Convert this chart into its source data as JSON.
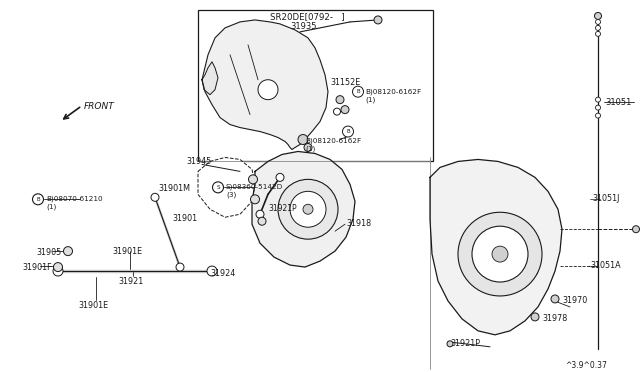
{
  "bg_color": "#ffffff",
  "line_color": "#1a1a1a",
  "text_color": "#1a1a1a",
  "gray_fill": "#e8e8e8",
  "light_gray": "#d0d0d0",
  "parts": {
    "SR20DE": "SR20DE[0792-   ]",
    "31935": "31935",
    "31152E": "31152E",
    "B08120_1": "B)08120-6162F",
    "sub1": "(1)",
    "B08120_2": "B)08120-6162F",
    "sub2": "(1)",
    "31051": "31051",
    "31051J": "31051J",
    "31051A": "31051A",
    "31970": "31970",
    "31978": "31978",
    "31921P_r": "31921P",
    "31945": "31945",
    "B08070": "B)08070-61210",
    "sub3": "(1)",
    "S08360": "S)08360-5142D",
    "sub4": "(3)",
    "31901M": "31901M",
    "31901": "31901",
    "31905": "31905",
    "31901F": "31901F",
    "31901E_a": "31901E",
    "31921P_l": "31921P",
    "31918": "31918",
    "31924": "31924",
    "31921": "31921",
    "31901E_b": "31901E",
    "FRONT": "FRONT",
    "copy": "^3.9^0.37"
  }
}
